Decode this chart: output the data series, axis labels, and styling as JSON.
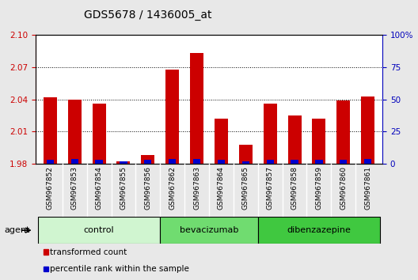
{
  "title": "GDS5678 / 1436005_at",
  "samples": [
    "GSM967852",
    "GSM967853",
    "GSM967854",
    "GSM967855",
    "GSM967856",
    "GSM967862",
    "GSM967863",
    "GSM967864",
    "GSM967865",
    "GSM967857",
    "GSM967858",
    "GSM967859",
    "GSM967860",
    "GSM967861"
  ],
  "transformed_count": [
    2.042,
    2.04,
    2.036,
    1.982,
    1.988,
    2.068,
    2.083,
    2.022,
    1.998,
    2.036,
    2.025,
    2.022,
    2.039,
    2.043
  ],
  "percentile_rank": [
    3,
    4,
    3,
    2,
    3,
    4,
    4,
    3,
    2,
    3,
    3,
    3,
    3,
    4
  ],
  "ylim_left": [
    1.98,
    2.1
  ],
  "ylim_right": [
    0,
    100
  ],
  "yticks_left": [
    1.98,
    2.01,
    2.04,
    2.07,
    2.1
  ],
  "yticks_right": [
    0,
    25,
    50,
    75,
    100
  ],
  "groups": [
    {
      "label": "control",
      "start": 0,
      "end": 5,
      "color": "#d0f5d0"
    },
    {
      "label": "bevacizumab",
      "start": 5,
      "end": 9,
      "color": "#70dc70"
    },
    {
      "label": "dibenzazepine",
      "start": 9,
      "end": 14,
      "color": "#40c840"
    }
  ],
  "agent_label": "agent",
  "bar_color_red": "#cc0000",
  "bar_color_blue": "#0000cc",
  "bar_width": 0.55,
  "blue_bar_width": 0.3,
  "baseline": 1.98,
  "background_color": "#e8e8e8",
  "plot_bg_color": "#ffffff",
  "xtick_bg_color": "#d0d0d0",
  "legend_items": [
    {
      "color": "#cc0000",
      "label": "transformed count"
    },
    {
      "color": "#0000cc",
      "label": "percentile rank within the sample"
    }
  ],
  "title_color": "#000000",
  "left_axis_color": "#cc0000",
  "right_axis_color": "#0000bb",
  "title_fontsize": 10,
  "tick_fontsize": 7.5,
  "group_fontsize": 8,
  "legend_fontsize": 7.5
}
